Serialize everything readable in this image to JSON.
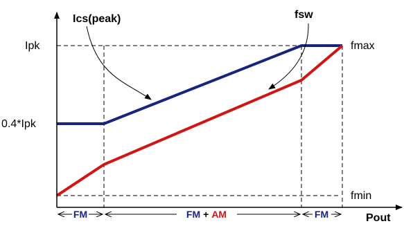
{
  "diagram": {
    "labels": {
      "ics_peak": "Ics(peak)",
      "fsw": "fsw",
      "ipk": "Ipk",
      "ipk_04": "0.4*Ipk",
      "fmax": "fmax",
      "fmin": "fmin",
      "pout": "Pout"
    },
    "regions": {
      "left": "FM",
      "middle_a": "FM",
      "middle_plus": "+",
      "middle_b": "AM",
      "right": "FM"
    },
    "colors": {
      "ics_curve": "#1a237e",
      "fsw_curve": "#d11414",
      "axis": "#000000",
      "am_text": "#d11414",
      "fm_text": "#1a237e"
    }
  }
}
